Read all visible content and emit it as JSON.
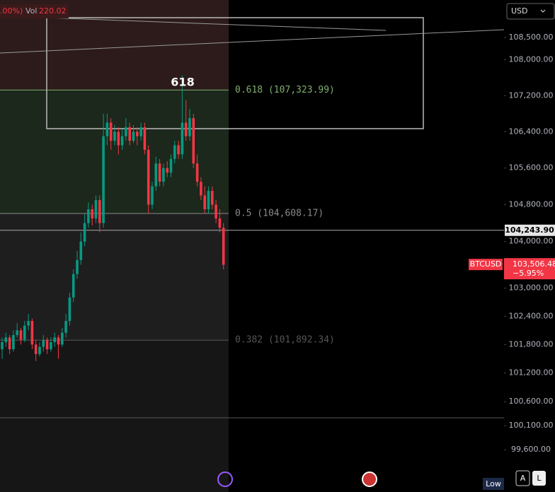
{
  "chart_data": {
    "type": "candlestick",
    "header": {
      "change": ".00%)",
      "volume_label": "Vol",
      "volume": "220.02"
    },
    "currency": "USD",
    "annotation": "618",
    "ylim": [
      98730,
      109350
    ],
    "log_scale": true,
    "yticks": [
      {
        "value": 108500,
        "label": "108,500.00"
      },
      {
        "value": 108000,
        "label": "108,000.00"
      },
      {
        "value": 107200,
        "label": "107,200.00"
      },
      {
        "value": 106400,
        "label": "106,400.00"
      },
      {
        "value": 105600,
        "label": "105,600.00"
      },
      {
        "value": 104800,
        "label": "104,800.00"
      },
      {
        "value": 104000,
        "label": "104,000.00"
      },
      {
        "value": 103000,
        "label": "103,000.00"
      },
      {
        "value": 102400,
        "label": "102,400.00"
      },
      {
        "value": 101800,
        "label": "101,800.00"
      },
      {
        "value": 101200,
        "label": "101,200.00"
      },
      {
        "value": 100600,
        "label": "100,600.00"
      },
      {
        "value": 100100,
        "label": "100,100.00"
      },
      {
        "value": 99600,
        "label": "99,600.00"
      }
    ],
    "up_color": "#089981",
    "down_color": "#f23645",
    "candles": [
      [
        101700,
        101950,
        101500,
        101850
      ],
      [
        101850,
        102050,
        101750,
        101950
      ],
      [
        101950,
        102000,
        101600,
        101700
      ],
      [
        101700,
        102100,
        101650,
        102000
      ],
      [
        102000,
        102250,
        101950,
        102100
      ],
      [
        102100,
        102150,
        101800,
        101900
      ],
      [
        101900,
        102300,
        101850,
        102200
      ],
      [
        102200,
        102450,
        102100,
        102300
      ],
      [
        102300,
        102350,
        101700,
        101800
      ],
      [
        101800,
        101900,
        101450,
        101600
      ],
      [
        101600,
        101850,
        101550,
        101750
      ],
      [
        101750,
        102000,
        101650,
        101900
      ],
      [
        101900,
        101950,
        101600,
        101700
      ],
      [
        101700,
        101950,
        101650,
        101850
      ],
      [
        101850,
        102050,
        101750,
        101950
      ],
      [
        101950,
        102000,
        101500,
        101800
      ],
      [
        101800,
        102150,
        101750,
        102050
      ],
      [
        102050,
        102450,
        101950,
        102300
      ],
      [
        102300,
        102900,
        102200,
        102800
      ],
      [
        102800,
        103400,
        102700,
        103300
      ],
      [
        103300,
        103800,
        103200,
        103600
      ],
      [
        103600,
        104200,
        103500,
        104000
      ],
      [
        104000,
        104600,
        103900,
        104400
      ],
      [
        104400,
        104850,
        104300,
        104700
      ],
      [
        104700,
        104800,
        104350,
        104500
      ],
      [
        104500,
        105000,
        104400,
        104900
      ],
      [
        104900,
        105000,
        104200,
        104400
      ],
      [
        104400,
        106800,
        104300,
        106300
      ],
      [
        106300,
        106800,
        106100,
        106600
      ],
      [
        106600,
        106700,
        106000,
        106200
      ],
      [
        106200,
        106550,
        106100,
        106400
      ],
      [
        106400,
        106500,
        105900,
        106100
      ],
      [
        106100,
        106450,
        106000,
        106300
      ],
      [
        106300,
        106700,
        106200,
        106500
      ],
      [
        106500,
        106600,
        106100,
        106200
      ],
      [
        106200,
        106550,
        106150,
        106400
      ],
      [
        106400,
        106500,
        106100,
        106300
      ],
      [
        106300,
        106600,
        106200,
        106500
      ],
      [
        106500,
        106600,
        105900,
        106000
      ],
      [
        106000,
        106100,
        104600,
        104800
      ],
      [
        104800,
        105300,
        104700,
        105200
      ],
      [
        105200,
        105850,
        105100,
        105700
      ],
      [
        105700,
        105800,
        105200,
        105300
      ],
      [
        105300,
        105700,
        105200,
        105600
      ],
      [
        105600,
        105750,
        105400,
        105500
      ],
      [
        105500,
        105900,
        105400,
        105800
      ],
      [
        105800,
        106200,
        105700,
        106100
      ],
      [
        106100,
        106200,
        105800,
        105900
      ],
      [
        105900,
        107650,
        105800,
        106600
      ],
      [
        106600,
        107100,
        106200,
        106300
      ],
      [
        106300,
        106900,
        106200,
        106700
      ],
      [
        106700,
        106800,
        105600,
        105700
      ],
      [
        105700,
        105900,
        105200,
        105300
      ],
      [
        105300,
        105400,
        104900,
        105000
      ],
      [
        105000,
        105200,
        104600,
        104700
      ],
      [
        104700,
        105200,
        104600,
        105100
      ],
      [
        105100,
        105200,
        104700,
        104800
      ],
      [
        104800,
        104900,
        104400,
        104500
      ],
      [
        104500,
        104700,
        104200,
        104300
      ],
      [
        104300,
        104400,
        103400,
        103500
      ]
    ],
    "fib_levels": [
      {
        "label": "0.618 (107,323.99)",
        "value": 107323.99,
        "color": "#7fae6d"
      },
      {
        "label": "0.5 (104,608.17)",
        "value": 104608.17,
        "color": "#8a8a8a"
      },
      {
        "label": "0.382 (101,892.34)",
        "value": 101892.34,
        "color": "#555555"
      }
    ],
    "zone_colors": [
      "#2d1b1b",
      "#1b281b",
      "#1e1e1e",
      "#161616"
    ],
    "current_price": {
      "value": 104243.9,
      "label": "104,243.90"
    },
    "symbol_price": {
      "symbol": "BTCUSD",
      "value": 103506.48,
      "label": "103,506.48",
      "change": "−5.95%"
    },
    "buttons": {
      "low": "Low",
      "auto": "A",
      "log": "L"
    }
  }
}
